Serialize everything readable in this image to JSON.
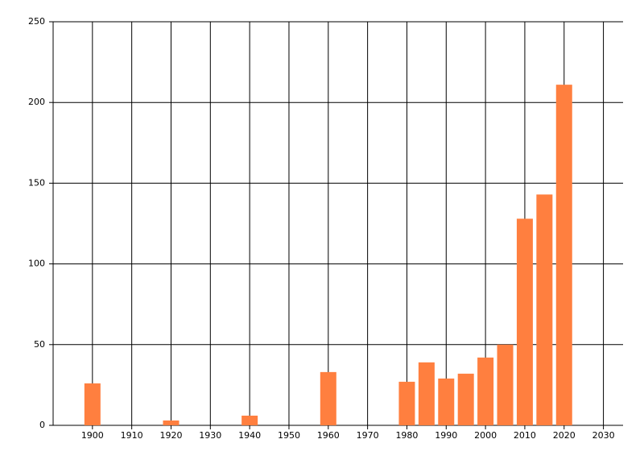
{
  "chart_data": {
    "type": "bar",
    "x": [
      1900,
      1920,
      1940,
      1960,
      1980,
      1985,
      1990,
      1995,
      2000,
      2005,
      2010,
      2015,
      2020
    ],
    "values": [
      26,
      3,
      6,
      33,
      27,
      39,
      29,
      32,
      42,
      50,
      128,
      143,
      211
    ],
    "color": "#ff7f3f",
    "xlim": [
      1890,
      2035
    ],
    "xticks": [
      1900,
      1910,
      1920,
      1930,
      1940,
      1950,
      1960,
      1970,
      1980,
      1990,
      2000,
      2010,
      2020,
      2030
    ],
    "ylim": [
      0,
      250
    ],
    "yticks": [
      0,
      50,
      100,
      150,
      200,
      250
    ],
    "grid": true
  }
}
